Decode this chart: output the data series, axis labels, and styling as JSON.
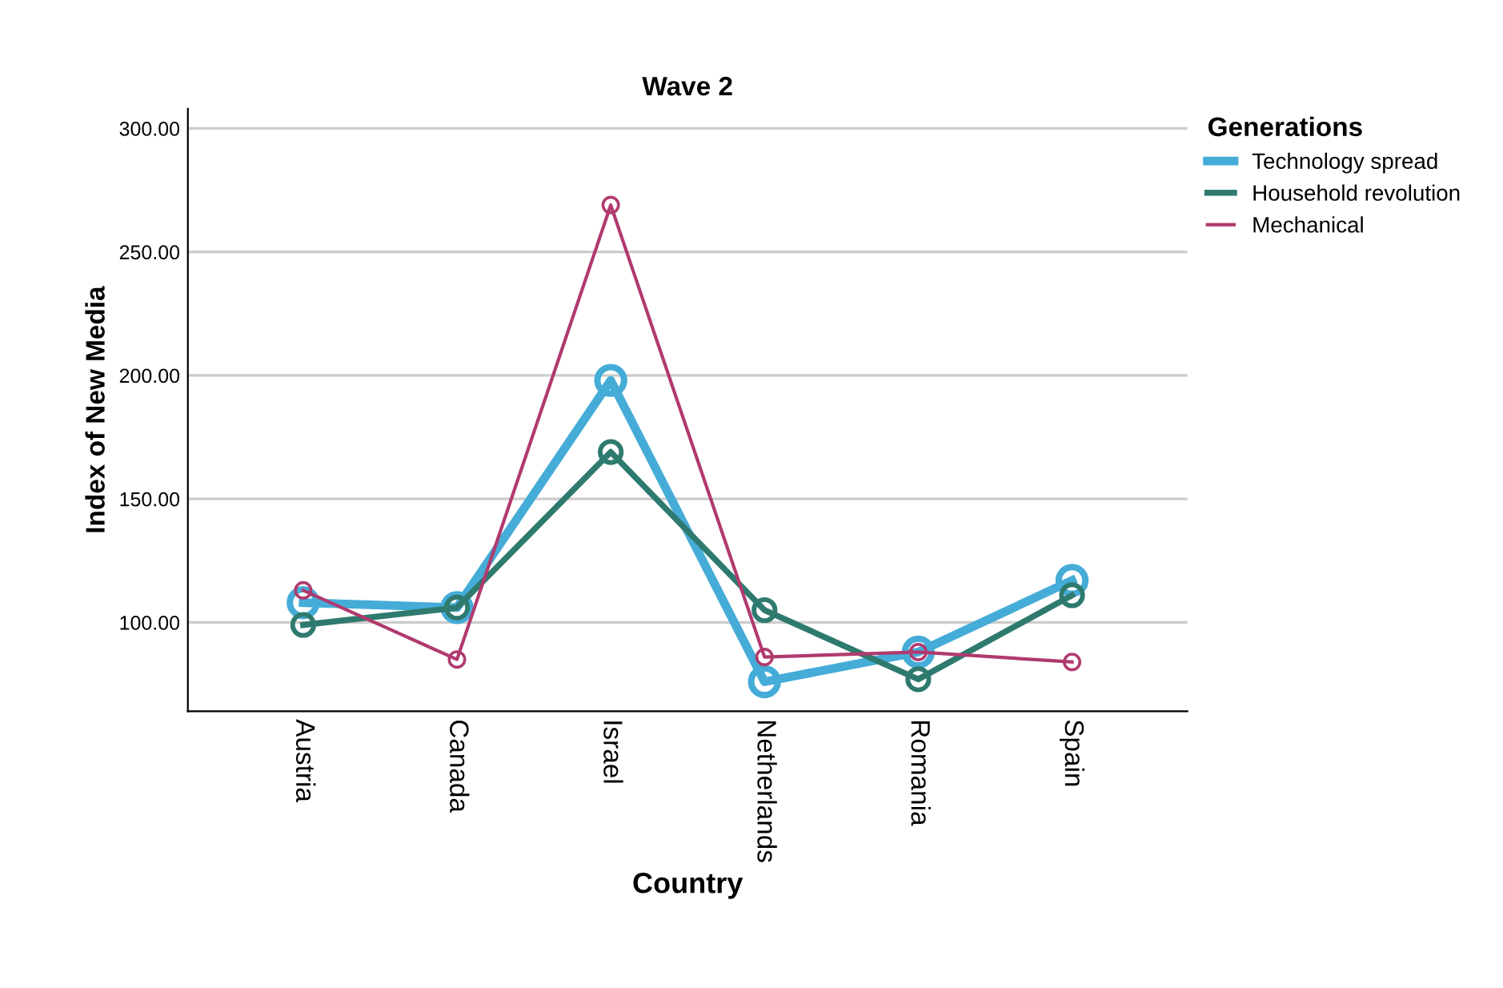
{
  "chart_data": {
    "type": "line",
    "title": "Wave 2",
    "xlabel": "Country",
    "ylabel": "Index of New Media",
    "legend_title": "Generations",
    "categories": [
      "Austria",
      "Canada",
      "Israel",
      "Netherlands",
      "Romania",
      "Spain"
    ],
    "series": [
      {
        "name": "Technology spread",
        "color": "#45acd8",
        "values": [
          108,
          106,
          198,
          76,
          88,
          117
        ]
      },
      {
        "name": "Household revolution",
        "color": "#2e7a6e",
        "values": [
          99,
          106,
          169,
          105,
          77,
          111
        ]
      },
      {
        "name": "Mechanical",
        "color": "#b03a6e",
        "values": [
          113,
          85,
          269,
          86,
          88,
          84
        ]
      }
    ],
    "ylim": [
      64,
      308
    ],
    "yticks": [
      {
        "value": 100,
        "label": "100.00"
      },
      {
        "value": 150,
        "label": "150.00"
      },
      {
        "value": 200,
        "label": "200.00"
      },
      {
        "value": 250,
        "label": "250.00"
      },
      {
        "value": 300,
        "label": "300.00"
      }
    ],
    "grid": "y",
    "legend": "top right",
    "marker": "circle",
    "line_style": "solid"
  }
}
